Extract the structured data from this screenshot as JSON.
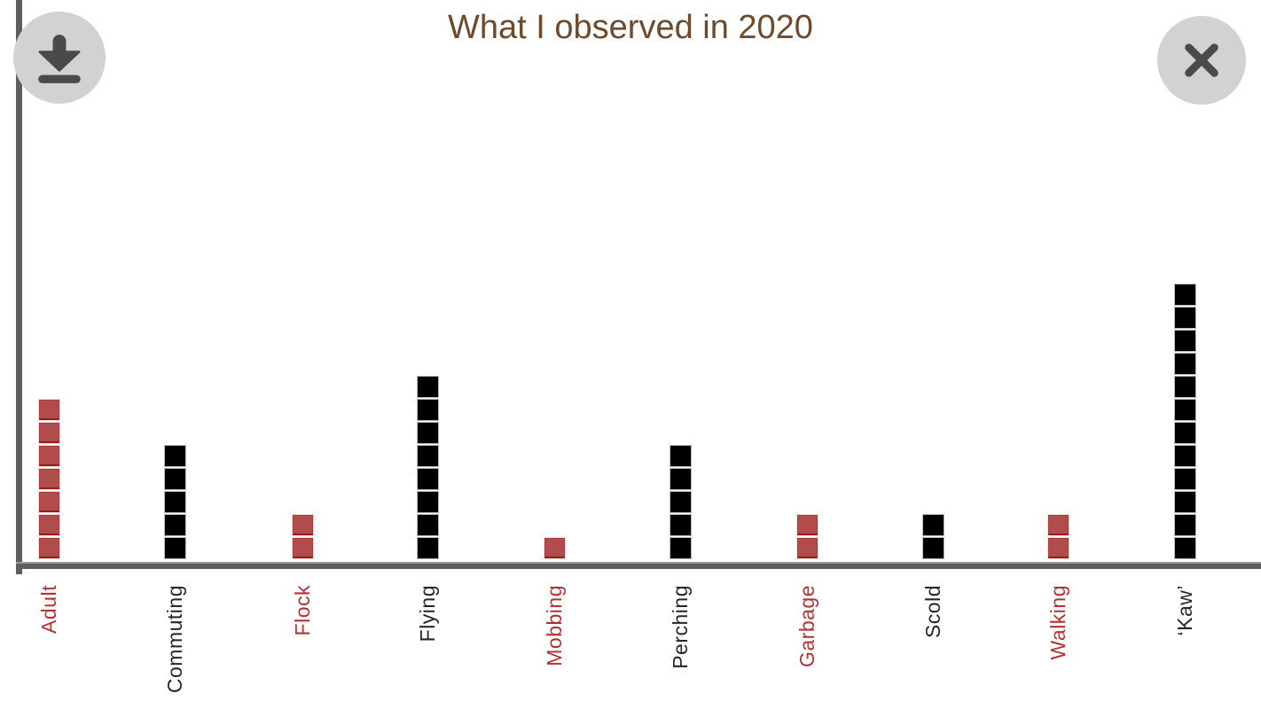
{
  "toolbar": {
    "download_icon": "download-icon",
    "close_icon": "close-icon"
  },
  "chart_data": {
    "type": "bar",
    "style": "waffle-unit-stack",
    "title": "What I observed in 2020",
    "categories": [
      "Adult",
      "Commuting",
      "Flock",
      "Flying",
      "Mobbing",
      "Perching",
      "Garbage",
      "Scold",
      "Walking",
      "‘Kaw’"
    ],
    "values": [
      7,
      5,
      2,
      8,
      1,
      5,
      2,
      2,
      2,
      12
    ],
    "colors": [
      "red",
      "black",
      "red",
      "black",
      "red",
      "black",
      "red",
      "black",
      "red",
      "black"
    ],
    "palette": {
      "red": "#b14c4c",
      "red_dark": "#941c1c",
      "black": "#000000",
      "label_red": "#b23232",
      "label_black": "#262626",
      "axis": "#5e5e5e",
      "title_brown": "#6d4a2b",
      "button_gray": "#d2d2d2",
      "icon_gray": "#4a4a4a"
    },
    "xlabel": "",
    "ylabel": "",
    "legend": false,
    "grid": false,
    "ylim": [
      0,
      12
    ]
  }
}
